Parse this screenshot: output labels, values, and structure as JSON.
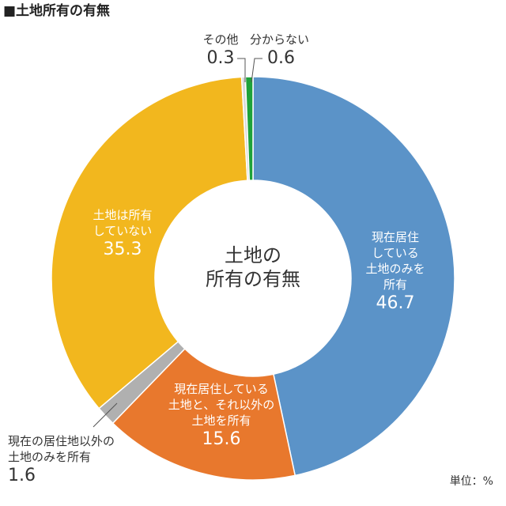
{
  "title": "■土地所有の有無",
  "unit": "単位：%",
  "center_label": [
    "土地の",
    "所有の有無"
  ],
  "chart_data": {
    "type": "pie",
    "title": "■土地所有の有無",
    "unit": "単位：%",
    "categories": [
      "現在居住しているの土地のみを所有",
      "現在居住している土地と、それ以外の土地を所有",
      "現在の居住地以外の土地のみを所有",
      "土地は所有していない",
      "その他",
      "分からない"
    ],
    "values": [
      46.7,
      15.6,
      1.6,
      35.3,
      0.3,
      0.6
    ],
    "colors": [
      "#5b93c8",
      "#e8782d",
      "#b0b0b0",
      "#f2b71e",
      "#d9d9d9",
      "#1ea23a"
    ],
    "start_angle_deg": 0,
    "direction": "clockwise"
  },
  "labels": {
    "resident_only": {
      "lines": [
        "現在居住",
        "している",
        "土地のみを",
        "所有"
      ],
      "value": "46.7"
    },
    "resident_and_other": {
      "lines": [
        "現在居住している",
        "土地と、それ以外の",
        "土地を所有"
      ],
      "value": "15.6"
    },
    "other_only": {
      "lines": [
        "現在の居住地以外の",
        "土地のみを所有"
      ],
      "value": "1.6"
    },
    "none": {
      "lines": [
        "土地は所有",
        "していない"
      ],
      "value": "35.3"
    },
    "other": {
      "name": "その他",
      "value": "0.3"
    },
    "unknown": {
      "name": "分からない",
      "value": "0.6"
    }
  }
}
